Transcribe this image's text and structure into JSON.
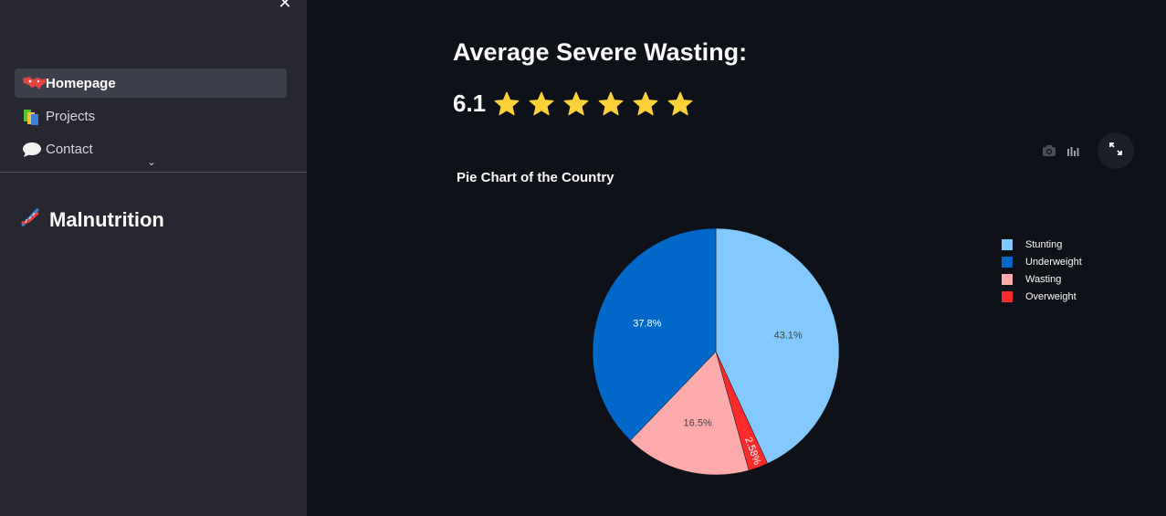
{
  "sidebar": {
    "close_symbol": "✕",
    "nav": [
      {
        "label": "Homepage",
        "icon": "world-map-icon",
        "active": true
      },
      {
        "label": "Projects",
        "icon": "books-icon",
        "active": false
      },
      {
        "label": "Contact",
        "icon": "speech-bubble-icon",
        "active": false
      }
    ],
    "more_symbol": "⌄",
    "brand": {
      "icon": "dna-icon",
      "label": "Malnutrition"
    }
  },
  "main": {
    "title": "Average Severe Wasting:",
    "rating": {
      "value": "6.1",
      "stars": 6,
      "star_color": "#fdd13a"
    }
  },
  "chart_data": {
    "type": "pie",
    "title": "Pie Chart of the Country",
    "labels": [
      "Stunting",
      "Underweight",
      "Wasting",
      "Overweight"
    ],
    "values": [
      43.1,
      37.8,
      16.5,
      2.58
    ],
    "display_labels": [
      "43.1%",
      "37.8%",
      "16.5%",
      "2.58%"
    ],
    "slice_order": [
      "Stunting",
      "Overweight",
      "Wasting",
      "Underweight"
    ],
    "colors": {
      "Stunting": "#83c9ff",
      "Underweight": "#0068c9",
      "Wasting": "#ffabab",
      "Overweight": "#ff2b2b"
    },
    "legend_position": "right"
  },
  "toolbar": {
    "icons": [
      "camera-icon",
      "bar-chart-icon",
      "fullscreen-icon"
    ]
  }
}
